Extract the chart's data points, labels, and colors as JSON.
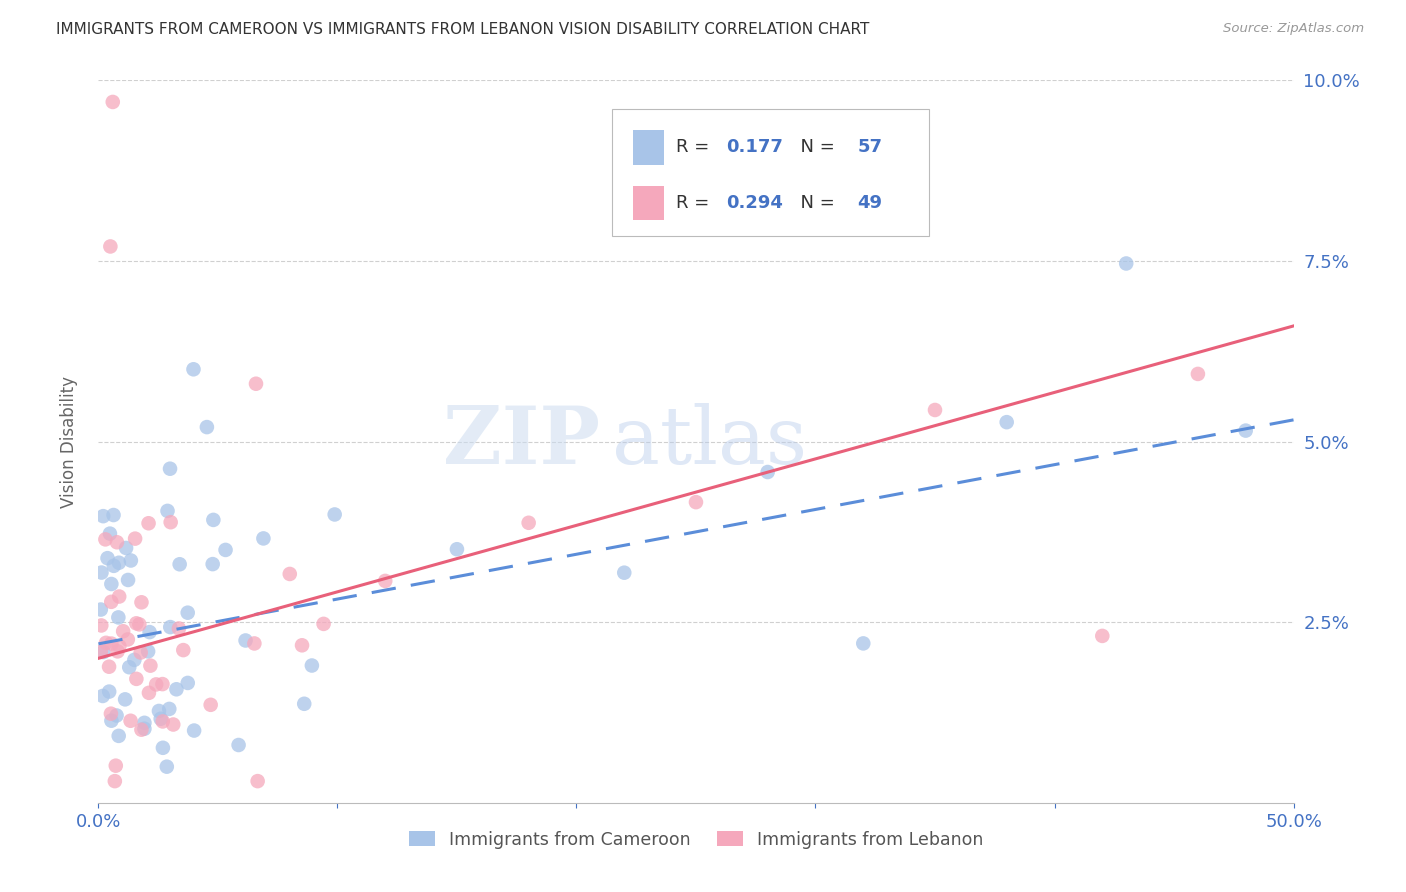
{
  "title": "IMMIGRANTS FROM CAMEROON VS IMMIGRANTS FROM LEBANON VISION DISABILITY CORRELATION CHART",
  "source": "Source: ZipAtlas.com",
  "ylabel": "Vision Disability",
  "xlim": [
    0.0,
    0.5
  ],
  "ylim": [
    0.0,
    0.1
  ],
  "blue_color": "#a8c4e8",
  "pink_color": "#f5a8bc",
  "blue_line_color": "#5b8dd9",
  "pink_line_color": "#e8607a",
  "axis_label_color": "#4472c4",
  "title_color": "#333333",
  "legend_R1": "0.177",
  "legend_N1": "57",
  "legend_R2": "0.294",
  "legend_N2": "49",
  "watermark_zip": "ZIP",
  "watermark_atlas": "atlas",
  "background_color": "#ffffff",
  "grid_color": "#d0d0d0",
  "cam_trend_start": 0.022,
  "cam_trend_end": 0.053,
  "leb_trend_start": 0.02,
  "leb_trend_end": 0.066
}
